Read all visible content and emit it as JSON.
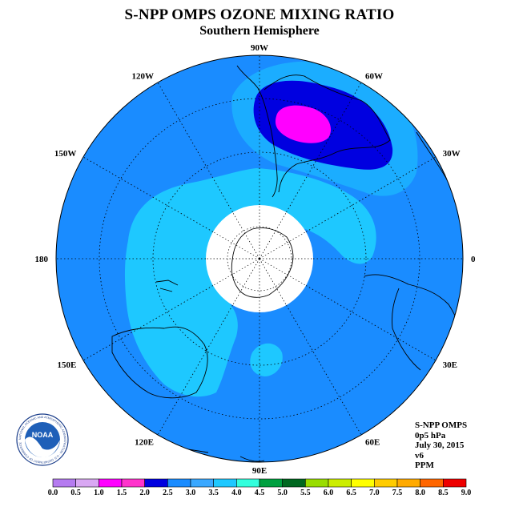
{
  "title": "S-NPP OMPS OZONE MIXING RATIO",
  "subtitle": "Southern Hemisphere",
  "logo_text": "NOAA",
  "logo_ring_text": "NATIONAL OCEANIC AND ATMOSPHERIC ADMINISTRATION · U.S. DEPARTMENT OF COMMERCE",
  "info": {
    "instrument": "S-NPP OMPS",
    "level": "0p5 hPa",
    "date": "July 30, 2015",
    "version": "v6",
    "unit": "PPM"
  },
  "longitude_labels": [
    {
      "text": "90W",
      "lon": -90
    },
    {
      "text": "60W",
      "lon": -60
    },
    {
      "text": "30W",
      "lon": -30
    },
    {
      "text": "0",
      "lon": 0
    },
    {
      "text": "30E",
      "lon": 30
    },
    {
      "text": "60E",
      "lon": 60
    },
    {
      "text": "90E",
      "lon": 90
    },
    {
      "text": "120E",
      "lon": 120
    },
    {
      "text": "150E",
      "lon": 150
    },
    {
      "text": "180",
      "lon": 180
    },
    {
      "text": "150W",
      "lon": -150
    },
    {
      "text": "120W",
      "lon": -120
    }
  ],
  "colorbar": {
    "labels": [
      "0.0",
      "0.5",
      "1.0",
      "1.5",
      "2.0",
      "2.5",
      "3.0",
      "3.5",
      "4.0",
      "4.5",
      "5.0",
      "5.5",
      "6.0",
      "6.5",
      "7.0",
      "7.5",
      "8.0",
      "8.5",
      "9.0"
    ],
    "colors": [
      "#b57bf0",
      "#d9a8f3",
      "#ff00ff",
      "#ff33cc",
      "#0000e0",
      "#1a8cff",
      "#3aa8ff",
      "#1ec8ff",
      "#33ffdd",
      "#00a040",
      "#006820",
      "#99dd00",
      "#ccee00",
      "#ffff00",
      "#ffcc00",
      "#ffaa00",
      "#ff6600",
      "#ee0000",
      "#885533"
    ]
  },
  "map_colors": {
    "background_field": "#1a8cff",
    "light_band": "#1ec8ff",
    "dark_blue_max": "#0000e0",
    "magenta_core": "#ff00ff",
    "pole_mask": "#ffffff"
  }
}
